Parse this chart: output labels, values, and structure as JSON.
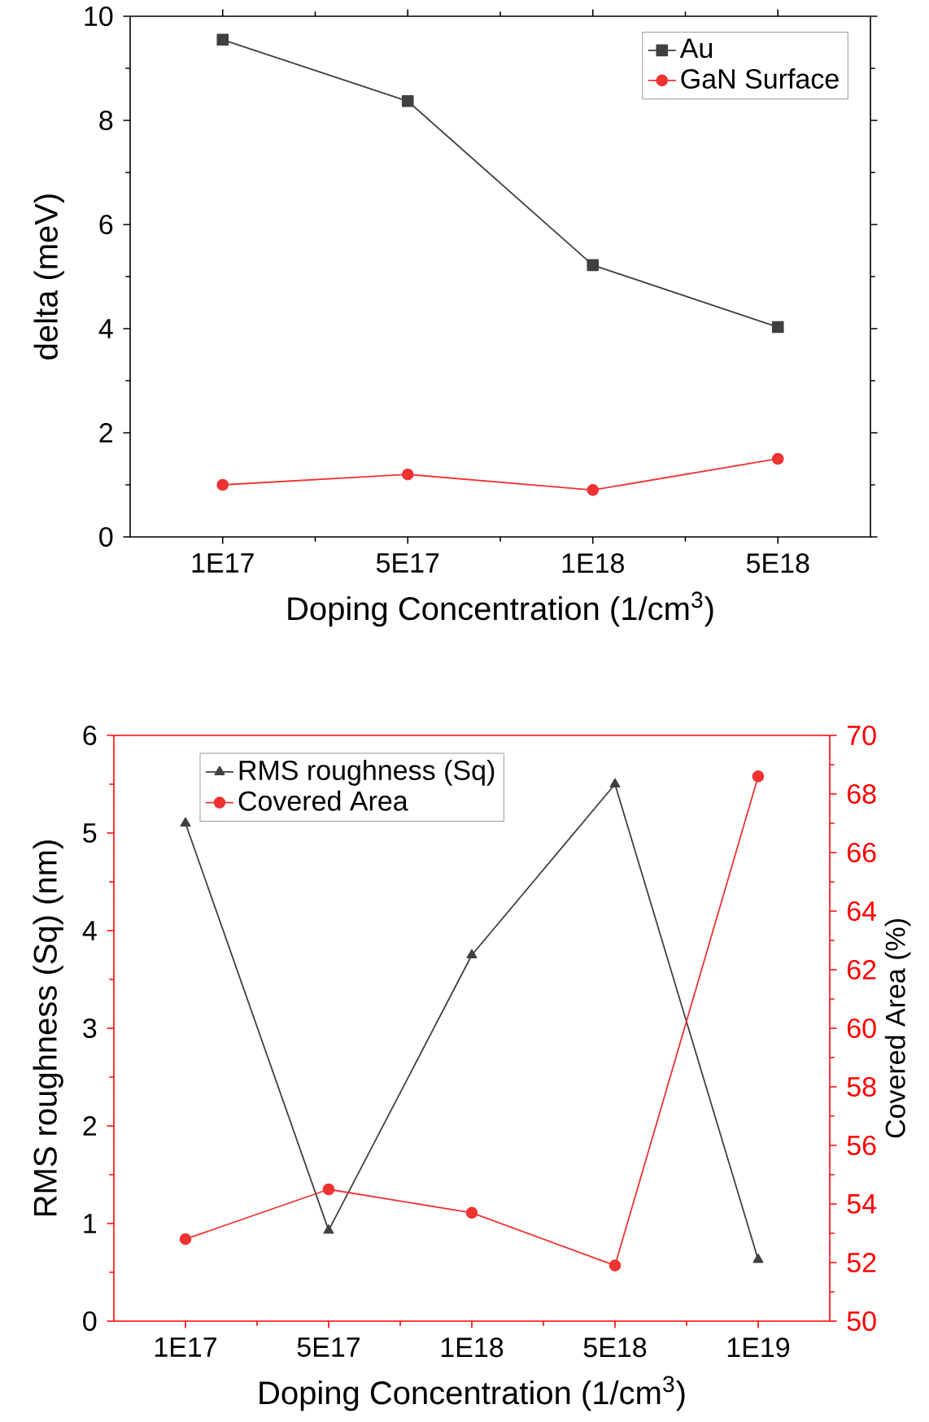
{
  "chart_data": [
    {
      "type": "line",
      "categories": [
        "1E17",
        "5E17",
        "1E18",
        "5E18"
      ],
      "xlabel": "Doping Concentration (1/cm$^{3}$)",
      "ylabel": "delta (meV)",
      "ylim": [
        0,
        10
      ],
      "yticks": [
        0,
        2,
        4,
        6,
        8,
        10
      ],
      "legend": "top right",
      "series": [
        {
          "name": "Au",
          "color": "#404040",
          "marker": "square",
          "values": [
            9.55,
            8.37,
            5.22,
            4.03
          ]
        },
        {
          "name": "GaN Surface",
          "color": "#ee3333",
          "marker": "circle",
          "values": [
            1.0,
            1.2,
            0.9,
            1.5
          ]
        }
      ]
    },
    {
      "type": "line",
      "categories": [
        "1E17",
        "5E17",
        "1E18",
        "5E18",
        "1E19"
      ],
      "xlabel": "Doping Concentration (1/cm$^{3}$)",
      "ylabel": "RMS roughness (Sq) (nm)",
      "y2label": "Covered Area (%)",
      "ylim": [
        0,
        6
      ],
      "yticks": [
        0,
        1,
        2,
        3,
        4,
        5,
        6
      ],
      "y2lim": [
        50,
        70
      ],
      "y2ticks": [
        50,
        52,
        54,
        56,
        58,
        60,
        62,
        64,
        66,
        68,
        70
      ],
      "legend": "top left",
      "series": [
        {
          "name": "RMS roughness (Sq)",
          "color": "#404040",
          "marker": "triangle",
          "values": [
            5.1,
            0.93,
            3.75,
            5.5,
            0.63
          ]
        },
        {
          "name": "Covered Area",
          "color": "#ee3333",
          "marker": "circle",
          "axis": "y2",
          "values": [
            52.8,
            54.5,
            53.7,
            51.9,
            68.6
          ]
        }
      ]
    }
  ]
}
